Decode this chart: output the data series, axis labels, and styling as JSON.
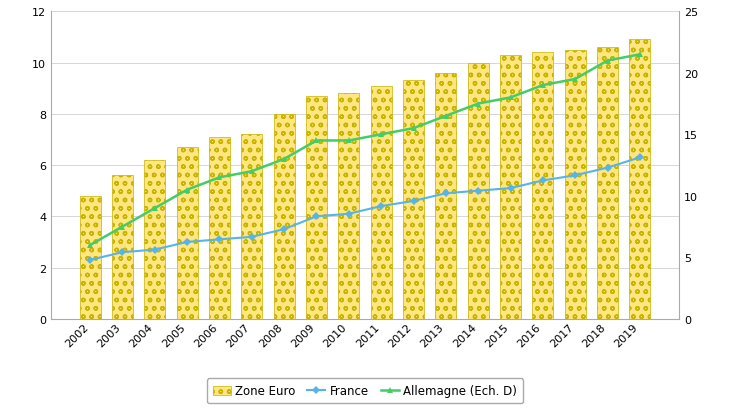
{
  "years": [
    2002,
    2003,
    2004,
    2005,
    2006,
    2007,
    2008,
    2009,
    2010,
    2011,
    2012,
    2013,
    2014,
    2015,
    2016,
    2017,
    2018,
    2019
  ],
  "zone_euro": [
    4.8,
    5.6,
    6.2,
    6.7,
    7.1,
    7.2,
    8.0,
    8.7,
    8.8,
    9.1,
    9.3,
    9.6,
    10.0,
    10.3,
    10.4,
    10.5,
    10.6,
    10.9
  ],
  "france": [
    2.3,
    2.6,
    2.7,
    3.0,
    3.1,
    3.2,
    3.5,
    4.0,
    4.1,
    4.4,
    4.6,
    4.9,
    5.0,
    5.1,
    5.4,
    5.6,
    5.9,
    6.3
  ],
  "allemagne": [
    6.0,
    7.5,
    9.0,
    10.5,
    11.5,
    12.0,
    13.0,
    14.5,
    14.5,
    15.0,
    15.5,
    16.5,
    17.5,
    18.0,
    19.0,
    19.5,
    21.0,
    21.5
  ],
  "bar_color": "#FFE680",
  "bar_edge_color": "#C8B400",
  "france_color": "#56B4E9",
  "allemagne_color": "#44CC66",
  "ylim_left": [
    0,
    12
  ],
  "ylim_right": [
    0,
    25
  ],
  "yticks_left": [
    0,
    2,
    4,
    6,
    8,
    10,
    12
  ],
  "yticks_right": [
    0,
    5,
    10,
    15,
    20,
    25
  ],
  "legend_labels": [
    "Zone Euro",
    "France",
    "Allemagne (Ech. D)"
  ],
  "background_color": "#ffffff",
  "grid_color": "#d0d0d0",
  "spine_color": "#aaaaaa"
}
